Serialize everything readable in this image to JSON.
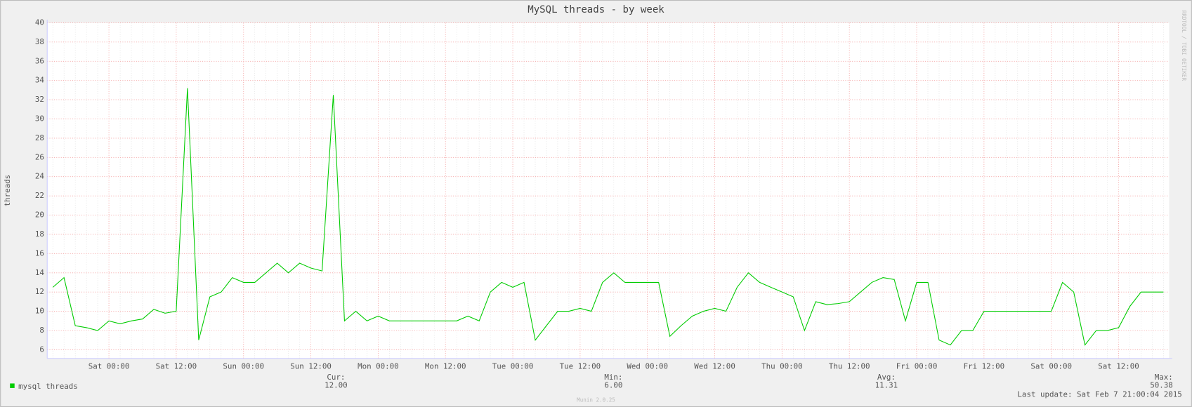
{
  "chart_data": {
    "type": "line",
    "title": "MySQL threads - by week",
    "y_label": "threads",
    "categories": [
      null,
      null,
      null,
      null,
      null,
      "Sat 00:00",
      null,
      null,
      null,
      null,
      null,
      "Sat 12:00",
      null,
      null,
      null,
      null,
      null,
      "Sun 00:00",
      null,
      null,
      null,
      null,
      null,
      "Sun 12:00",
      null,
      null,
      null,
      null,
      null,
      "Mon 00:00",
      null,
      null,
      null,
      null,
      null,
      "Mon 12:00",
      null,
      null,
      null,
      null,
      null,
      "Tue 00:00",
      null,
      null,
      null,
      null,
      null,
      "Tue 12:00",
      null,
      null,
      null,
      null,
      null,
      "Wed 00:00",
      null,
      null,
      null,
      null,
      null,
      "Wed 12:00",
      null,
      null,
      null,
      null,
      null,
      "Thu 00:00",
      null,
      null,
      null,
      null,
      null,
      "Thu 12:00",
      null,
      null,
      null,
      null,
      null,
      "Fri 00:00",
      null,
      null,
      null,
      null,
      null,
      "Fri 12:00",
      null,
      null,
      null,
      null,
      null,
      "Sat 00:00",
      null,
      null,
      null,
      null,
      null,
      "Sat 12:00",
      null,
      null,
      null,
      null
    ],
    "series": [
      {
        "name": "mysql threads",
        "color": "#00cc00",
        "values": [
          12.5,
          13.5,
          8.5,
          8.3,
          8,
          9,
          8.7,
          9,
          9.2,
          10.2,
          9.8,
          10,
          33.2,
          7,
          11.5,
          12,
          13.5,
          13,
          13,
          14,
          15,
          14,
          15,
          14.5,
          14.2,
          32.5,
          9,
          10,
          9,
          9.5,
          9,
          9,
          9,
          9,
          9,
          9,
          9,
          9.5,
          9,
          12,
          13,
          12.5,
          13,
          7,
          8.5,
          10,
          10,
          10.3,
          10,
          13,
          14,
          13,
          13,
          13,
          13,
          7.4,
          8.5,
          9.5,
          10,
          10.3,
          10,
          12.5,
          14,
          13,
          12.5,
          12,
          11.5,
          8,
          11,
          10.7,
          10.8,
          11,
          12,
          13,
          13.5,
          13.3,
          9,
          13,
          13,
          7,
          6.5,
          8,
          8,
          10,
          10,
          10,
          10,
          10,
          10,
          10,
          13,
          12,
          6.5,
          8,
          8,
          8.3,
          10.5,
          12,
          12,
          12
        ]
      }
    ],
    "ylim": [
      5.1,
      40
    ],
    "yticks": [
      6,
      8,
      10,
      12,
      14,
      16,
      18,
      20,
      22,
      24,
      26,
      28,
      30,
      32,
      34,
      36,
      38,
      40
    ],
    "grid": true,
    "stats": [
      {
        "label": "Cur:",
        "text": "12.00"
      },
      {
        "label": "Min:",
        "text": "6.00"
      },
      {
        "label": "Avg:",
        "text": "11.31"
      },
      {
        "label": "Max:",
        "text": "50.38"
      }
    ],
    "last_update": "Last update: Sat Feb  7 21:00:04 2015",
    "footer": "Munin 2.0.25",
    "watermark": "RRDTOOL / TOBI OETIKER"
  }
}
